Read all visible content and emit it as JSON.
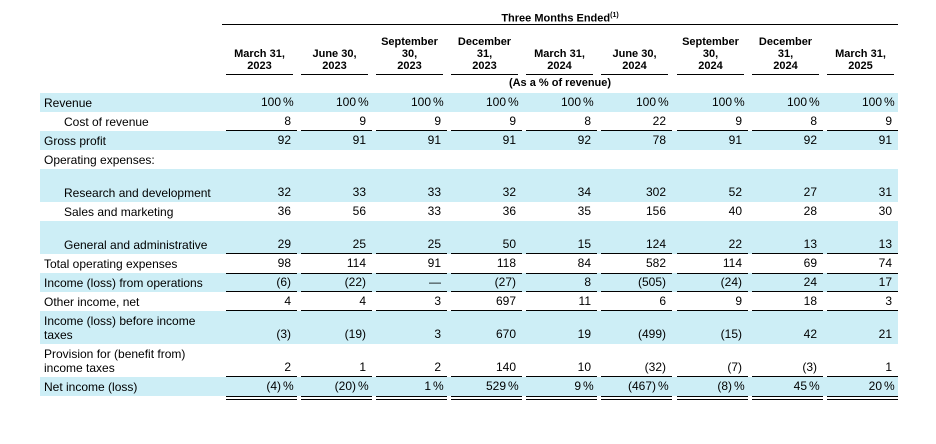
{
  "header": {
    "super_title": "Three Months Ended",
    "super_title_note": "(1)",
    "unit_caption": "(As a % of revenue)",
    "columns": [
      "March 31,\n2023",
      "June 30,\n2023",
      "September\n30,\n2023",
      "December\n31,\n2023",
      "March 31,\n2024",
      "June 30,\n2024",
      "September\n30,\n2024",
      "December\n31,\n2024",
      "March 31,\n2025"
    ]
  },
  "rows": [
    {
      "label": "Revenue",
      "values": [
        "100",
        "100",
        "100",
        "100",
        "100",
        "100",
        "100",
        "100",
        "100"
      ],
      "pct": true,
      "shaded": true
    },
    {
      "label": "Cost of revenue",
      "values": [
        "8",
        "9",
        "9",
        "9",
        "8",
        "22",
        "9",
        "8",
        "9"
      ],
      "indent": true,
      "ul": true
    },
    {
      "label": "Gross profit",
      "values": [
        "92",
        "91",
        "91",
        "91",
        "92",
        "78",
        "91",
        "92",
        "91"
      ],
      "shaded": true
    },
    {
      "label": "Operating expenses:",
      "values": []
    },
    {
      "label": "Research and development",
      "values": [
        "32",
        "33",
        "33",
        "32",
        "34",
        "302",
        "52",
        "27",
        "31"
      ],
      "indent": true,
      "shaded": true,
      "tall": true
    },
    {
      "label": "Sales and marketing",
      "values": [
        "36",
        "56",
        "33",
        "36",
        "35",
        "156",
        "40",
        "28",
        "30"
      ],
      "indent": true
    },
    {
      "label": "General and administrative",
      "values": [
        "29",
        "25",
        "25",
        "50",
        "15",
        "124",
        "22",
        "13",
        "13"
      ],
      "indent": true,
      "shaded": true,
      "tall": true,
      "ul": true
    },
    {
      "label": "Total operating expenses",
      "values": [
        "98",
        "114",
        "91",
        "118",
        "84",
        "582",
        "114",
        "69",
        "74"
      ]
    },
    {
      "label": "Income (loss) from operations",
      "values": [
        "(6)",
        "(22)",
        "—",
        "(27)",
        "8",
        "(505)",
        "(24)",
        "24",
        "17"
      ],
      "shaded": true,
      "ul": true,
      "top": true
    },
    {
      "label": "Other income, net",
      "values": [
        "4",
        "4",
        "3",
        "697",
        "11",
        "6",
        "9",
        "18",
        "3"
      ],
      "ul": true
    },
    {
      "label": "Income (loss) before income taxes",
      "values": [
        "(3)",
        "(19)",
        "3",
        "670",
        "19",
        "(499)",
        "(15)",
        "42",
        "21"
      ],
      "shaded": true,
      "tall": true
    },
    {
      "label": "Provision for (benefit from) income taxes",
      "values": [
        "2",
        "1",
        "2",
        "140",
        "10",
        "(32)",
        "(7)",
        "(3)",
        "1"
      ],
      "tall": true,
      "ul": true
    },
    {
      "label": "Net income (loss)",
      "values": [
        "(4)",
        "(20)",
        "1",
        "529",
        "9",
        "(467)",
        "(8)",
        "45",
        "20"
      ],
      "pct": true,
      "shaded": true,
      "dbl": true
    }
  ],
  "percent_sign": "%"
}
